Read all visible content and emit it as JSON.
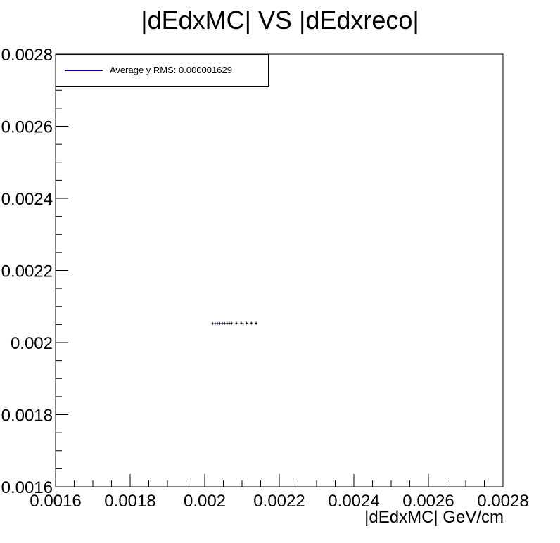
{
  "chart_data": {
    "type": "scatter",
    "title": "|dEdxMC| VS |dEdxreco|",
    "xlabel": "|dEdxMC| GeV/cm",
    "ylabel": "",
    "xlim": [
      0.0016,
      0.0028
    ],
    "ylim": [
      0.0016,
      0.0028
    ],
    "x_ticks": [
      "0.0016",
      "0.0018",
      "0.002",
      "0.0022",
      "0.0024",
      "0.0026",
      "0.0028"
    ],
    "y_ticks": [
      "0.0016",
      "0.0018",
      "0.002",
      "0.0022",
      "0.0024",
      "0.0026",
      "0.0028"
    ],
    "x_tick_values": [
      0.0016,
      0.0018,
      0.002,
      0.0022,
      0.0024,
      0.0026,
      0.0028
    ],
    "y_tick_values": [
      0.0016,
      0.0018,
      0.002,
      0.0022,
      0.0024,
      0.0026,
      0.0028
    ],
    "grid": false,
    "legend_position": "top-left",
    "series": [
      {
        "name": "Average y RMS: 0.000001629",
        "color": "#00008b",
        "points": [
          {
            "x": 0.002021,
            "y": 0.0020526,
            "xerr": 3e-06
          },
          {
            "x": 0.002028,
            "y": 0.0020527,
            "xerr": 3e-06
          },
          {
            "x": 0.002034,
            "y": 0.0020528,
            "xerr": 3e-06
          },
          {
            "x": 0.00204,
            "y": 0.002053,
            "xerr": 3e-06
          },
          {
            "x": 0.002047,
            "y": 0.0020531,
            "xerr": 3e-06
          },
          {
            "x": 0.002053,
            "y": 0.0020532,
            "xerr": 3e-06
          },
          {
            "x": 0.00206,
            "y": 0.0020533,
            "xerr": 3e-06
          },
          {
            "x": 0.002066,
            "y": 0.0020534,
            "xerr": 3e-06
          },
          {
            "x": 0.002072,
            "y": 0.0020535,
            "xerr": 3e-06
          },
          {
            "x": 0.002085,
            "y": 0.0020536,
            "xerr": 3e-06
          },
          {
            "x": 0.002098,
            "y": 0.0020537,
            "xerr": 3e-06
          },
          {
            "x": 0.002112,
            "y": 0.0020537,
            "xerr": 3e-06
          },
          {
            "x": 0.002125,
            "y": 0.0020538,
            "xerr": 3e-06
          },
          {
            "x": 0.002138,
            "y": 0.0020538,
            "xerr": 3e-06
          }
        ]
      }
    ]
  }
}
